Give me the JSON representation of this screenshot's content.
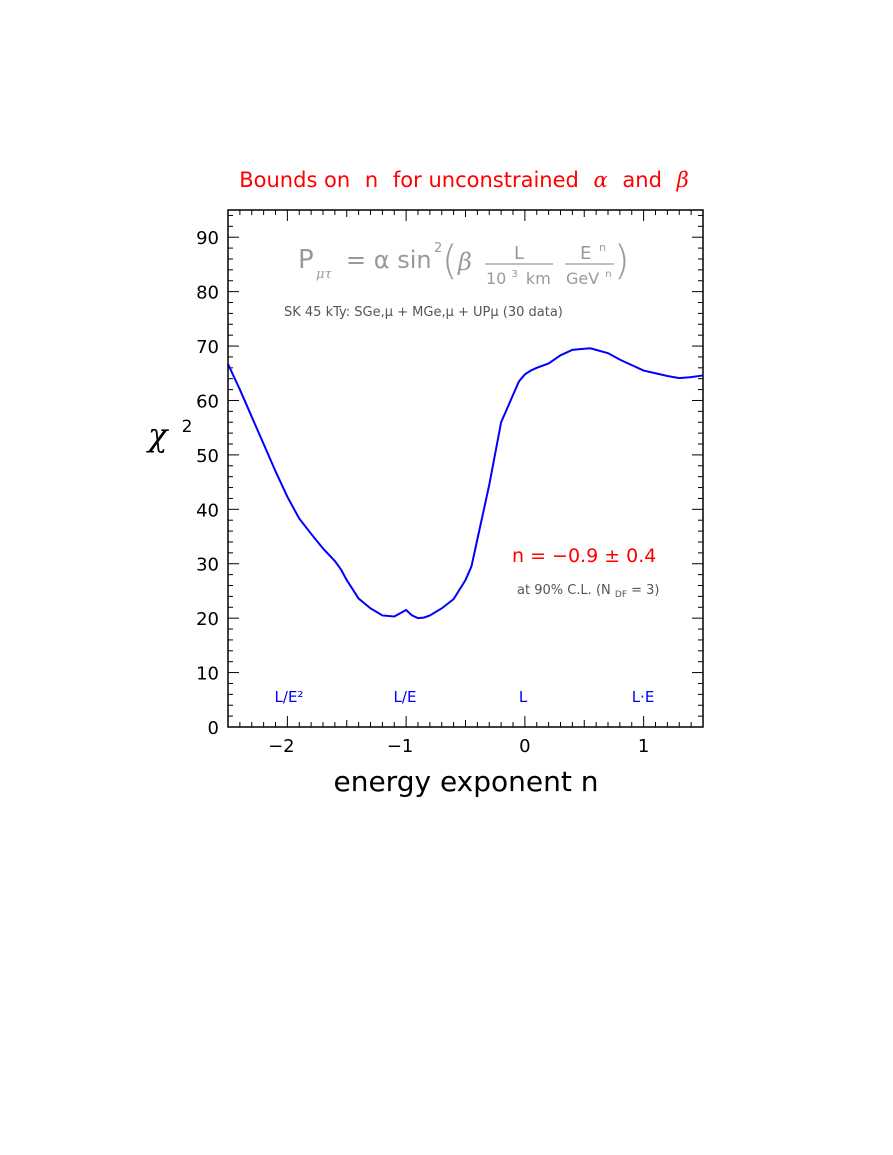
{
  "chart_data": {
    "type": "line",
    "title": {
      "prefix": "Bounds on",
      "var_n": "n",
      "middle": "for unconstrained",
      "alpha": "α",
      "and": "and",
      "beta": "β"
    },
    "xlabel": "energy exponent n",
    "ylabel": {
      "chi": "χ",
      "sup": "2"
    },
    "xlim": [
      -2.5,
      1.5
    ],
    "ylim": [
      0,
      95
    ],
    "x_ticks": [
      -2,
      -1,
      0,
      1
    ],
    "x_tick_labels": [
      "−2",
      "−1",
      "0",
      "1"
    ],
    "y_ticks": [
      0,
      10,
      20,
      30,
      40,
      50,
      60,
      70,
      80,
      90
    ],
    "y_tick_labels": [
      "0",
      "10",
      "20",
      "30",
      "40",
      "50",
      "60",
      "70",
      "80",
      "90"
    ],
    "grid": false,
    "series": [
      {
        "color": "#0000ff",
        "x": [
          -2.5,
          -2.4,
          -2.3,
          -2.2,
          -2.1,
          -2.0,
          -1.9,
          -1.8,
          -1.7,
          -1.6,
          -1.55,
          -1.5,
          -1.4,
          -1.3,
          -1.2,
          -1.1,
          -1.0,
          -0.95,
          -0.9,
          -0.85,
          -0.8,
          -0.7,
          -0.6,
          -0.5,
          -0.45,
          -0.4,
          -0.3,
          -0.2,
          -0.1,
          -0.05,
          0.0,
          0.05,
          0.1,
          0.2,
          0.3,
          0.4,
          0.5,
          0.55,
          0.6,
          0.7,
          0.8,
          0.9,
          1.0,
          1.1,
          1.2,
          1.3,
          1.4,
          1.5
        ],
        "y": [
          66.7,
          62.0,
          57.0,
          52.0,
          47.0,
          42.3,
          38.3,
          35.5,
          32.8,
          30.5,
          29.0,
          27.0,
          23.6,
          21.8,
          20.5,
          20.3,
          21.5,
          20.5,
          20.0,
          20.1,
          20.5,
          21.8,
          23.5,
          27.0,
          29.5,
          34.5,
          44.5,
          56.0,
          61.0,
          63.5,
          64.8,
          65.5,
          66.0,
          66.8,
          68.3,
          69.3,
          69.5,
          69.6,
          69.3,
          68.7,
          67.5,
          66.5,
          65.5,
          65.0,
          64.5,
          64.1,
          64.3,
          64.6
        ]
      }
    ],
    "annotations": {
      "formula": {
        "p": "P",
        "p_sub": "μτ",
        "eq": "= α sin",
        "sin_sup": "2",
        "beta": "β",
        "frac1_num": "L",
        "frac1_den_10": "10",
        "frac1_den_sup": "3",
        "frac1_den_km": "km",
        "frac2_num": "E",
        "frac2_num_sup": "n",
        "frac2_den": "GeV",
        "frac2_den_sup": "n"
      },
      "dataset": "SK 45 kTy:  SGe,μ + MGe,μ + UPμ  (30 data)",
      "result": "n = −0.9 ± 0.4",
      "cl": {
        "prefix": "at 90% C.L.  (N",
        "sub": "DF",
        "suffix": " = 3)"
      },
      "regimes": [
        "L/E²",
        "L/E",
        "L",
        "L·E"
      ]
    },
    "colors": {
      "title": "#ff0000",
      "result": "#ff0000",
      "curve": "#0000ff",
      "regimes": "#0000ff",
      "formula": "#999999",
      "note": "#555555",
      "axes": "#000000"
    }
  }
}
